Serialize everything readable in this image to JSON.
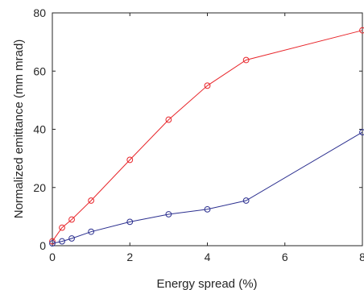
{
  "chart_data": {
    "type": "line",
    "title": "",
    "xlabel": "Energy spread (%)",
    "ylabel": "Normalized emittance (mm mrad)",
    "xlim": [
      0,
      8
    ],
    "ylim": [
      0,
      80
    ],
    "xticks": [
      0,
      2,
      4,
      6,
      8
    ],
    "yticks": [
      0,
      20,
      40,
      60,
      80
    ],
    "grid": false,
    "legend": "none",
    "series": [
      {
        "color": "#e8262b",
        "marker": "circle",
        "x": [
          0,
          0.25,
          0.5,
          1,
          2,
          3,
          4,
          5,
          8
        ],
        "y": [
          1.5,
          6.2,
          9,
          15.5,
          29.5,
          43.3,
          55,
          63.8,
          74
        ]
      },
      {
        "color": "#2b2f8f",
        "marker": "circle",
        "x": [
          0,
          0.25,
          0.5,
          1,
          2,
          3,
          4,
          5,
          8
        ],
        "y": [
          0.8,
          1.5,
          2.5,
          4.8,
          8.2,
          10.8,
          12.5,
          15.5,
          39
        ]
      }
    ]
  }
}
